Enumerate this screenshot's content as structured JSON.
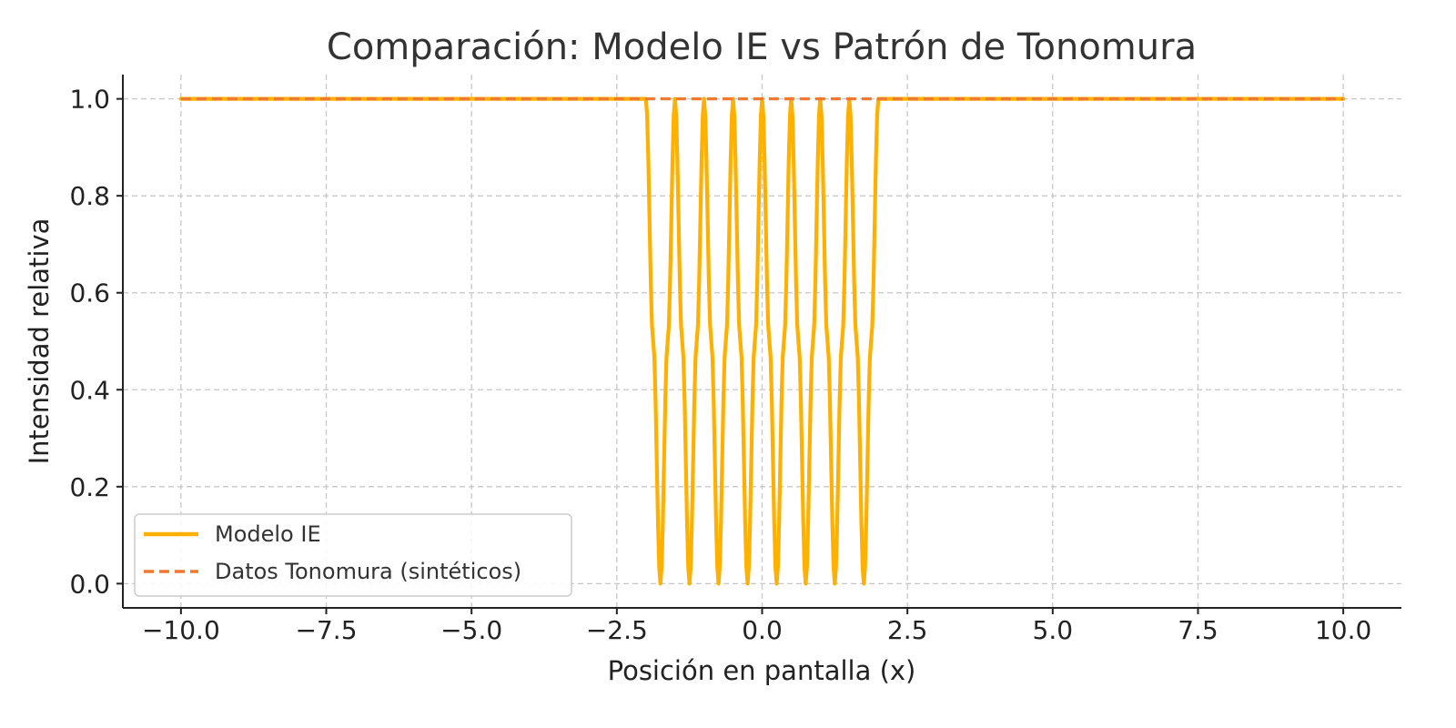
{
  "chart_data": {
    "type": "line",
    "title": "Comparación: Modelo IE vs Patrón de Tonomura",
    "xlabel": "Posición en pantalla (x)",
    "ylabel": "Intensidad relativa",
    "xlim": [
      -11,
      11
    ],
    "ylim": [
      -0.05,
      1.05
    ],
    "xticks": [
      -10.0,
      -7.5,
      -5.0,
      -2.5,
      0.0,
      2.5,
      5.0,
      7.5,
      10.0
    ],
    "xtick_labels": [
      "−10.0",
      "−7.5",
      "−5.0",
      "−2.5",
      "0.0",
      "2.5",
      "5.0",
      "7.5",
      "10.0"
    ],
    "yticks": [
      0.0,
      0.2,
      0.4,
      0.6,
      0.8,
      1.0
    ],
    "ytick_labels": [
      "0.0",
      "0.2",
      "0.4",
      "0.6",
      "0.8",
      "1.0"
    ],
    "grid": true,
    "legend_position": "bottom-left",
    "series": [
      {
        "name": "Modelo IE",
        "style": "solid",
        "color": "#FFB000",
        "x": [
          -10,
          -2.0,
          -1.875,
          -1.75,
          -1.625,
          -1.5,
          -1.375,
          -1.25,
          -1.125,
          -1.0,
          -0.875,
          -0.75,
          -0.625,
          -0.5,
          -0.375,
          -0.25,
          -0.125,
          0.0,
          0.125,
          0.25,
          0.375,
          0.5,
          0.625,
          0.75,
          0.875,
          1.0,
          1.125,
          1.25,
          1.375,
          1.5,
          1.625,
          1.75,
          1.875,
          2.0,
          10
        ],
        "y": [
          1,
          1,
          0.5,
          0,
          0.5,
          1,
          0.5,
          0,
          0.5,
          1,
          0.5,
          0,
          0.5,
          1,
          0.5,
          0,
          0.5,
          1,
          0.5,
          0,
          0.5,
          1,
          0.5,
          0,
          0.5,
          1,
          0.5,
          0,
          0.5,
          1,
          0.5,
          0,
          0.5,
          1,
          1
        ]
      },
      {
        "name": "Datos Tonomura (sintéticos)",
        "style": "dashed",
        "color": "#F07830",
        "x": [
          -10,
          10
        ],
        "y": [
          1,
          1
        ]
      }
    ]
  }
}
